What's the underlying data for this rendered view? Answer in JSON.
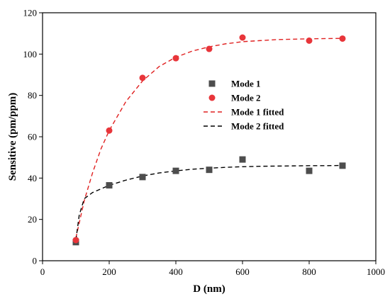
{
  "chart_data": {
    "type": "scatter",
    "xlabel": "D (nm)",
    "ylabel": "Sensitive (pm/ppm)",
    "xlim": [
      0,
      1000
    ],
    "ylim": [
      0,
      120
    ],
    "xticks": [
      0,
      200,
      400,
      600,
      800,
      1000
    ],
    "yticks": [
      0,
      20,
      40,
      60,
      80,
      100,
      120
    ],
    "legend_position": "center-right",
    "series": [
      {
        "name": "Mode 1",
        "kind": "scatter",
        "marker": "square",
        "color": "#4d4d4d",
        "x": [
          100,
          200,
          300,
          400,
          500,
          600,
          800,
          900
        ],
        "y": [
          9,
          36.5,
          40.5,
          43.5,
          44,
          49,
          43.5,
          46
        ]
      },
      {
        "name": "Mode 2",
        "kind": "scatter",
        "marker": "circle",
        "color": "#e8353a",
        "x": [
          100,
          200,
          300,
          400,
          500,
          600,
          800,
          900
        ],
        "y": [
          10,
          63,
          88.5,
          98,
          102.5,
          108,
          106.5,
          107.5
        ]
      },
      {
        "name": "Mode 1 fitted",
        "kind": "line",
        "dash": true,
        "color": "#e02020",
        "x": [
          100,
          125,
          150,
          175,
          200,
          250,
          300,
          350,
          400,
          450,
          500,
          550,
          600,
          650,
          700,
          750,
          800,
          850,
          900
        ],
        "y": [
          11,
          29,
          42.5,
          54,
          63,
          77,
          87,
          94,
          98.5,
          101.5,
          103.5,
          105,
          106,
          106.5,
          107,
          107.2,
          107.4,
          107.5,
          107.6
        ]
      },
      {
        "name": "Mode 2 fitted",
        "kind": "line",
        "dash": true,
        "color": "#000000",
        "x": [
          100,
          110,
          125,
          150,
          200,
          250,
          300,
          350,
          400,
          450,
          500,
          550,
          600,
          650,
          700,
          750,
          800,
          850,
          900
        ],
        "y": [
          10,
          22,
          30,
          33,
          36.5,
          39,
          41,
          42.5,
          43.5,
          44.3,
          44.8,
          45.2,
          45.5,
          45.7,
          45.8,
          45.9,
          46,
          46,
          46.1
        ]
      }
    ]
  }
}
